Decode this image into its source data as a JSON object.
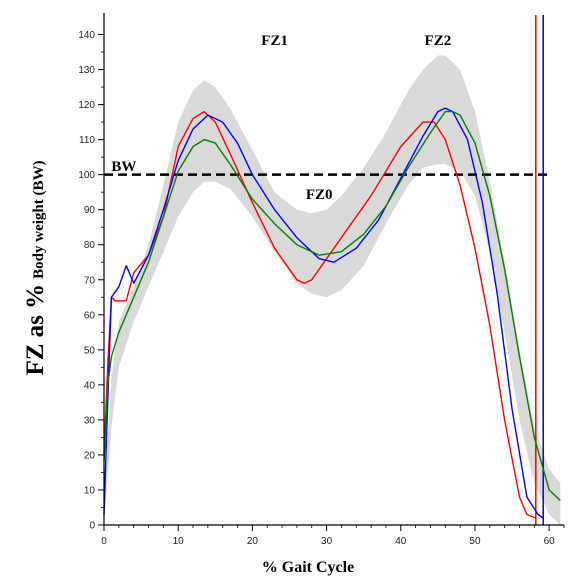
{
  "chart_data": {
    "type": "line",
    "xlabel": "% Gait Cycle",
    "ylabel_prefix": "FZ as %",
    "ylabel_suffix": "Body weight (BW)",
    "xlim": [
      0,
      62
    ],
    "ylim": [
      0,
      145
    ],
    "xticks": [
      0,
      10,
      20,
      30,
      40,
      50,
      60
    ],
    "yticks": [
      0,
      10,
      20,
      30,
      40,
      50,
      60,
      70,
      80,
      90,
      100,
      110,
      120,
      130,
      140
    ],
    "grid": false,
    "annotations": [
      {
        "text": "FZ1",
        "x": 23,
        "y": 137
      },
      {
        "text": "FZ2",
        "x": 45,
        "y": 137
      },
      {
        "text": "FZ0",
        "x": 29,
        "y": 93
      },
      {
        "text": "BW",
        "x": 1,
        "y": 101
      }
    ],
    "reference_lines": [
      {
        "label": "BW",
        "orientation": "horizontal",
        "y": 100,
        "x_from": 0,
        "x_to": 60,
        "style": "dashed",
        "color": "#000000"
      },
      {
        "orientation": "vertical",
        "x": 58.2,
        "color": "#ff0000"
      },
      {
        "orientation": "vertical",
        "x": 59.2,
        "color": "#0000ff"
      }
    ],
    "band": {
      "color": "#d9d9d9",
      "x": [
        0,
        1,
        2,
        4,
        6,
        8,
        10,
        12,
        13.5,
        15,
        17,
        20,
        23,
        26,
        28,
        30,
        32,
        35,
        38,
        41,
        43,
        45,
        46,
        48,
        50,
        52,
        54,
        56,
        58,
        60,
        61.5
      ],
      "upper": [
        5,
        42,
        58,
        68,
        80,
        97,
        115,
        124,
        127,
        125,
        119,
        107,
        95,
        90,
        89,
        90,
        94,
        102,
        112,
        124,
        130,
        134,
        134,
        130,
        118,
        98,
        75,
        50,
        28,
        16,
        12
      ],
      "lower": [
        0,
        28,
        45,
        58,
        68,
        78,
        88,
        95,
        98,
        98,
        96,
        88,
        78,
        69,
        66,
        65,
        67,
        74,
        86,
        97,
        102,
        103,
        103,
        101,
        94,
        78,
        55,
        30,
        12,
        3,
        0
      ]
    },
    "series": [
      {
        "color": "#ff0000",
        "x": [
          0,
          0.5,
          1,
          1.5,
          3,
          4,
          6,
          8,
          10,
          12,
          13.5,
          15,
          17,
          20,
          23,
          26,
          27,
          28,
          30,
          33,
          36,
          40,
          43,
          44.5,
          46,
          48,
          50,
          52,
          54,
          56,
          57,
          58.2
        ],
        "y": [
          20,
          45,
          65,
          64,
          64,
          72,
          77,
          88,
          108,
          116,
          118,
          115,
          106,
          92,
          79,
          70,
          69,
          70,
          76,
          85,
          94,
          108,
          115,
          115,
          110,
          97,
          79,
          57,
          30,
          8,
          3,
          2
        ]
      },
      {
        "color": "#0000ff",
        "x": [
          0,
          0.5,
          1,
          2,
          3,
          4,
          6,
          8,
          10,
          12,
          14,
          16,
          18,
          20,
          23,
          26,
          29,
          31,
          34,
          37,
          40,
          43,
          45,
          46,
          47,
          49,
          51,
          53,
          55,
          57,
          58.5,
          59.2
        ],
        "y": [
          3,
          35,
          65,
          68,
          74,
          69,
          77,
          90,
          104,
          113,
          117,
          115,
          109,
          100,
          90,
          82,
          76,
          75,
          79,
          87,
          99,
          111,
          118,
          119,
          118,
          110,
          92,
          66,
          33,
          8,
          3,
          2
        ]
      },
      {
        "color": "#008000",
        "x": [
          0,
          0.5,
          1,
          2,
          4,
          6,
          8,
          10,
          12,
          13.5,
          15,
          17,
          20,
          23,
          26,
          29,
          32,
          35,
          38,
          41,
          44,
          46,
          47,
          48,
          50,
          52,
          54,
          56,
          58,
          60,
          61.5
        ],
        "y": [
          18,
          40,
          48,
          55,
          65,
          75,
          88,
          101,
          108,
          110,
          109,
          103,
          93,
          86,
          80,
          77,
          78,
          83,
          91,
          102,
          112,
          118,
          118,
          117,
          109,
          94,
          73,
          48,
          25,
          10,
          7
        ]
      }
    ]
  }
}
